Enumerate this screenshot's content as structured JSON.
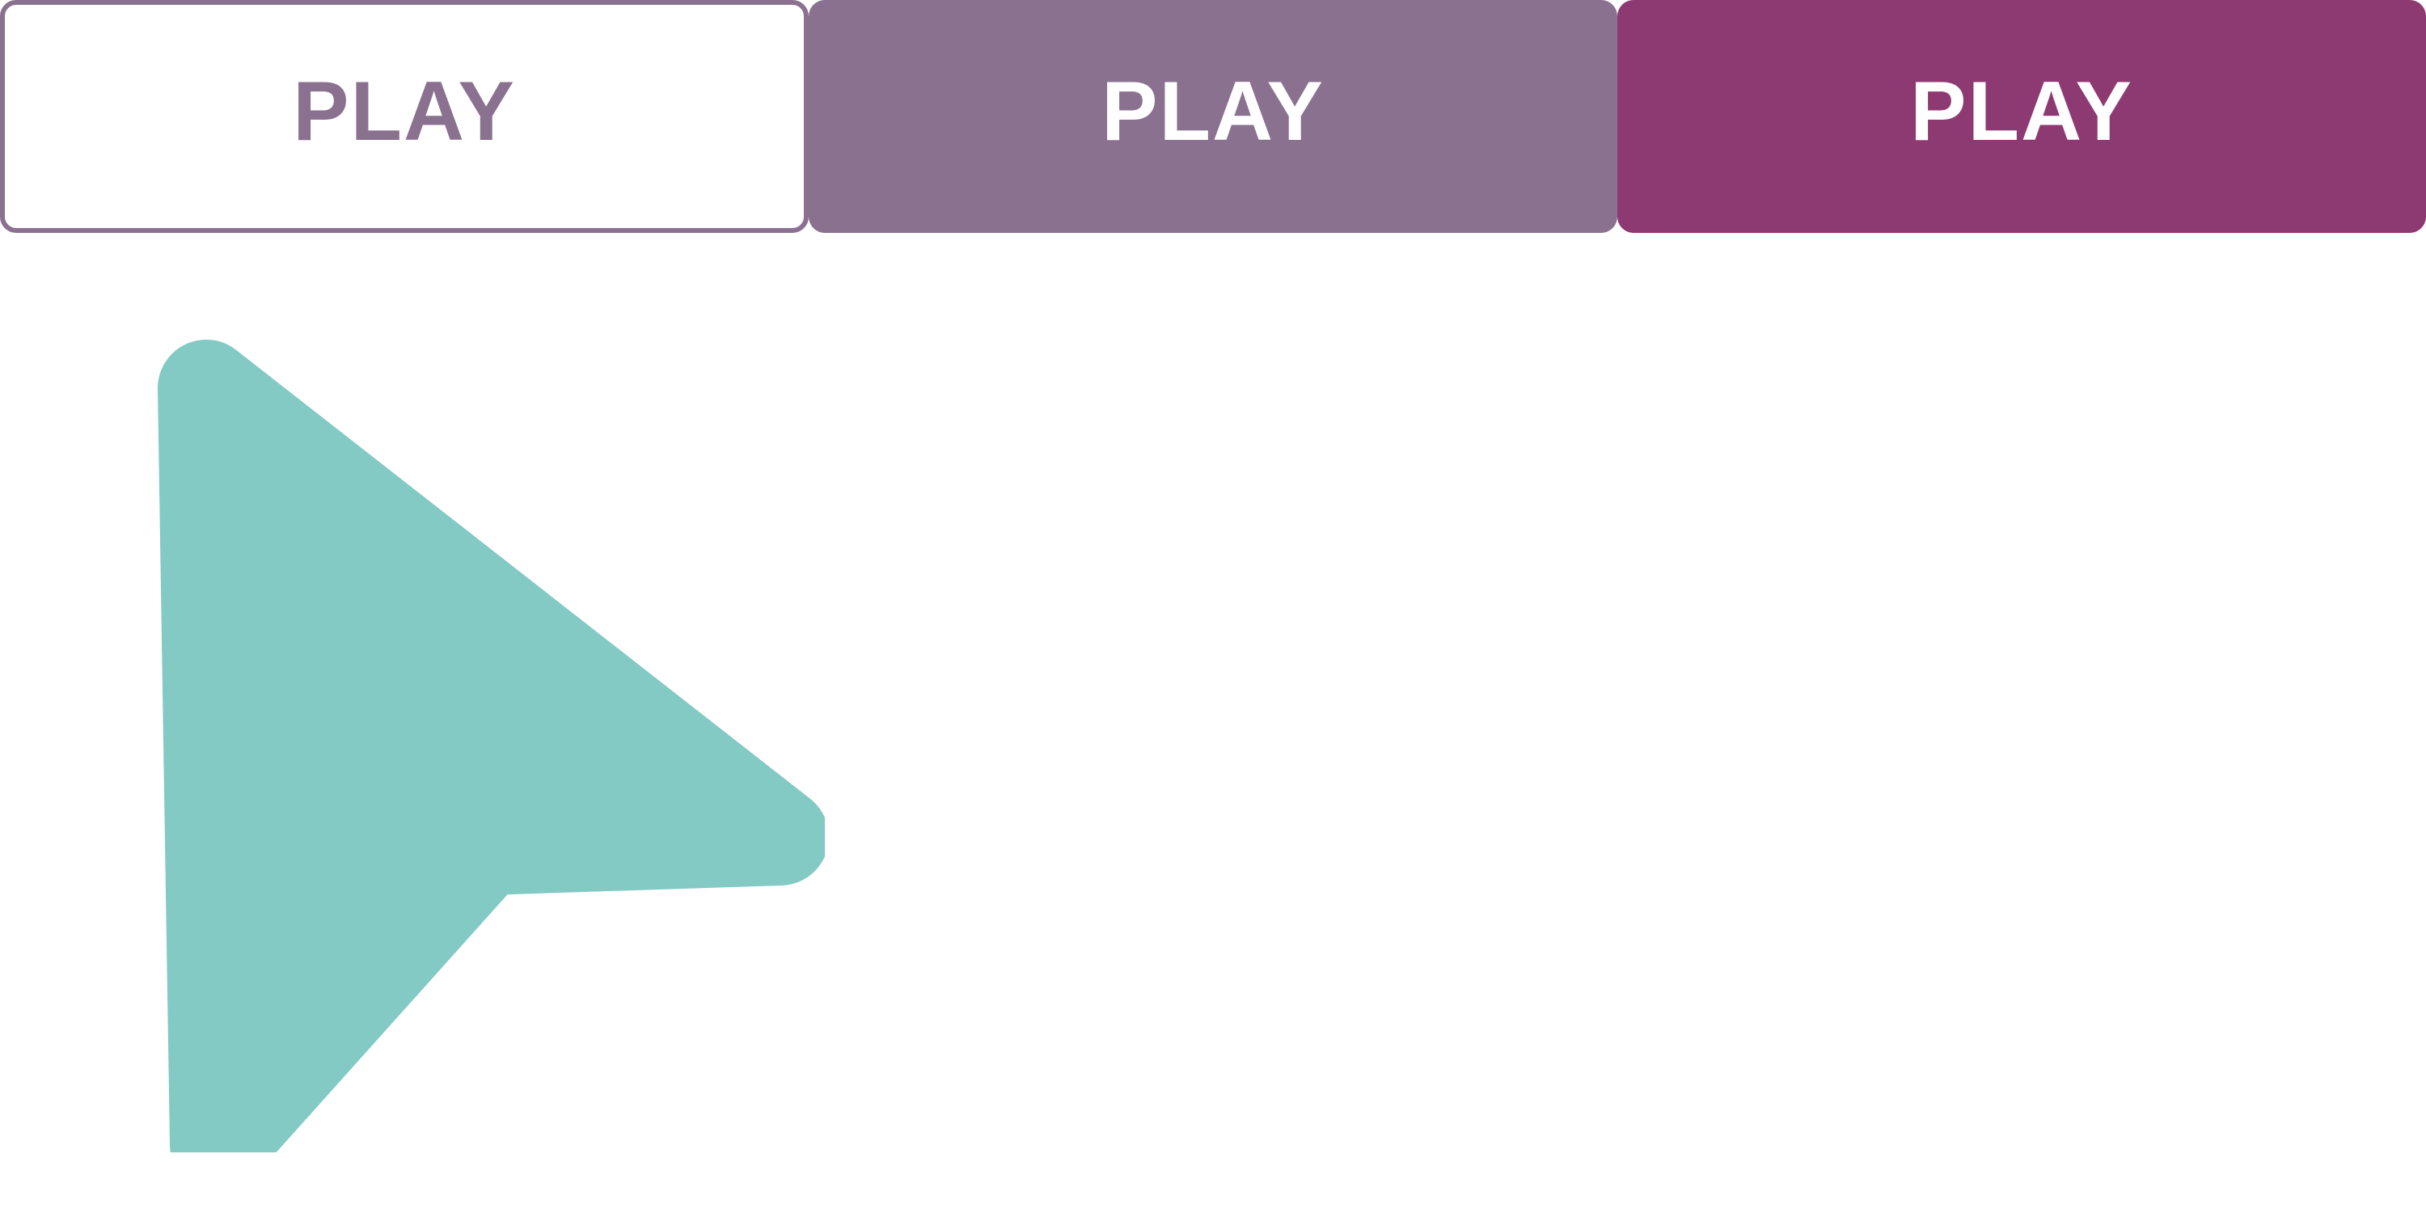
{
  "buttons": [
    {
      "label": "PLAY",
      "variant": "outline"
    },
    {
      "label": "PLAY",
      "variant": "muted"
    },
    {
      "label": "PLAY",
      "variant": "primary"
    }
  ],
  "colors": {
    "outline": "#8a7190",
    "muted": "#8a7190",
    "primary": "#8e3a72",
    "cursor": "#83c9c4"
  },
  "cursor": {
    "icon": "pointer-arrow-icon"
  }
}
